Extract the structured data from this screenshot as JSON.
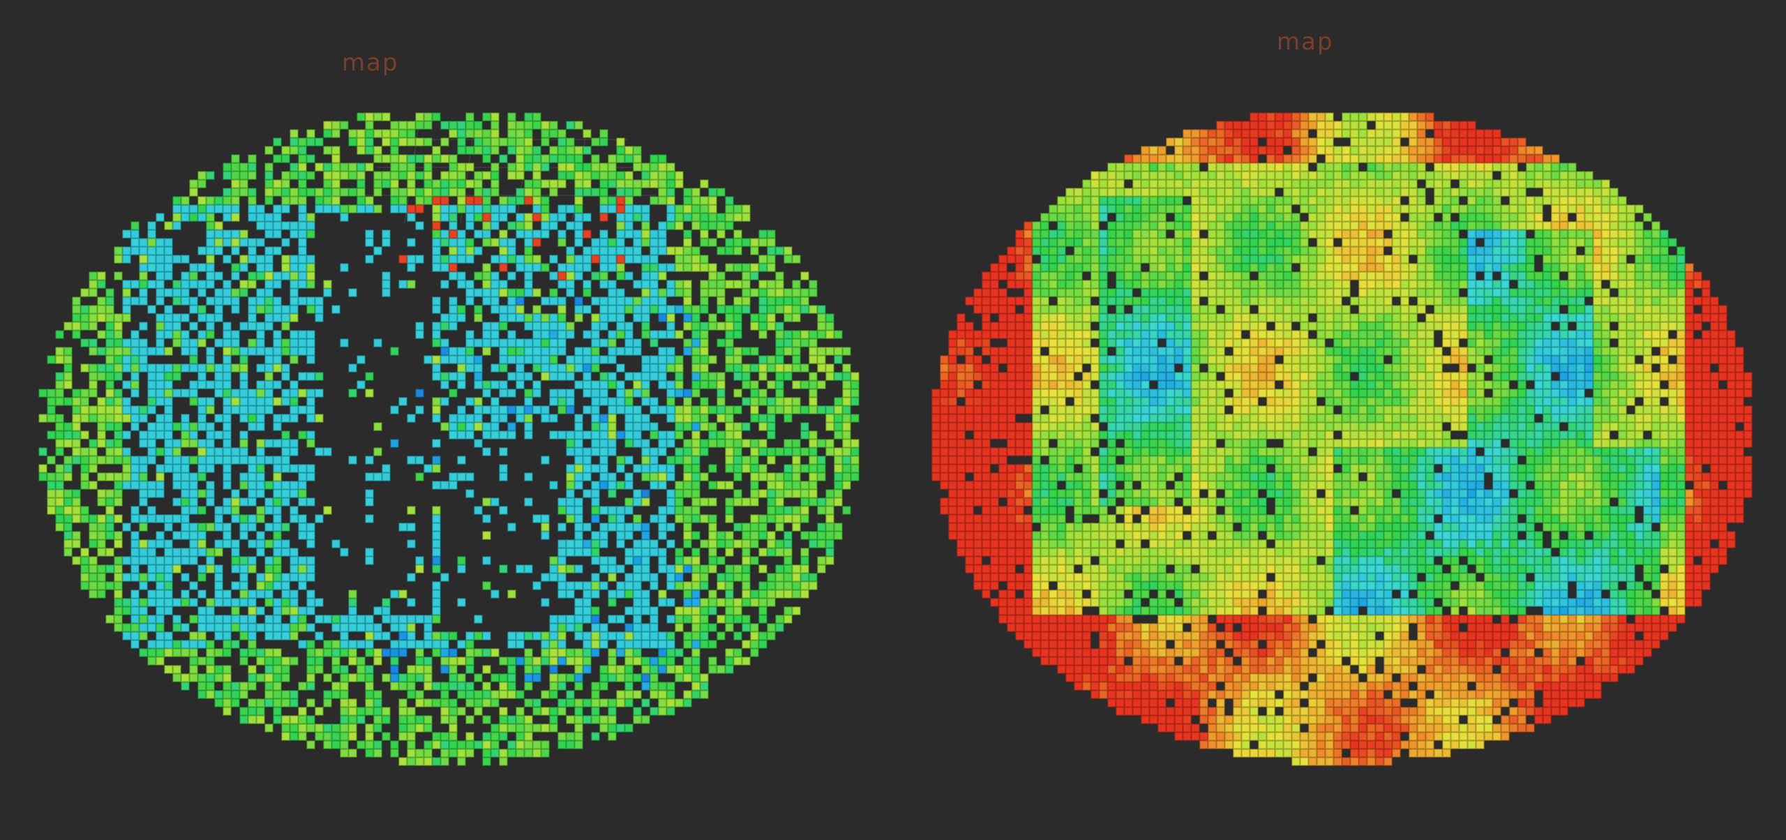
{
  "scene": {
    "background_color": "#2b2b2b",
    "colormap": [
      "#1a3ccf",
      "#1aa0e6",
      "#38d8d8",
      "#2ed44a",
      "#9fe23a",
      "#e8e23a",
      "#f0962a",
      "#e8321e"
    ]
  },
  "panels": [
    {
      "name": "sparse-octomap",
      "frame_label": "map",
      "description_colors": {
        "dominant": "#3ad6d6",
        "secondary": "#3cd24a"
      }
    },
    {
      "name": "dense-octomap",
      "frame_label": "map",
      "description_colors": {
        "dominant": "#3ad04a",
        "secondary": "#e8501e"
      }
    }
  ]
}
